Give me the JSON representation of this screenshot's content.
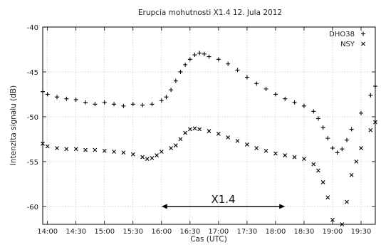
{
  "chart_data": {
    "type": "scatter",
    "title": "Erupcia mohutnosti X1.4 12. Jula 2012",
    "xlabel": "Cas (UTC)",
    "ylabel": "Intenzita signalu (dB)",
    "x_range": [
      "13:55",
      "19:45"
    ],
    "ylim": [
      -62,
      -40
    ],
    "x_ticks": [
      "14:00",
      "14:30",
      "15:00",
      "15:30",
      "16:00",
      "16:30",
      "17:00",
      "17:30",
      "18:00",
      "18:30",
      "19:00",
      "19:30"
    ],
    "y_ticks": [
      -40,
      -45,
      -50,
      -55,
      -60
    ],
    "grid": true,
    "legend_position": "top-right",
    "series": [
      {
        "name": "DHO38",
        "marker": "+",
        "color": "#000000",
        "points": [
          [
            "13:55",
            -47.2
          ],
          [
            "14:00",
            -47.5
          ],
          [
            "14:10",
            -47.8
          ],
          [
            "14:20",
            -48.0
          ],
          [
            "14:30",
            -48.1
          ],
          [
            "14:40",
            -48.4
          ],
          [
            "14:50",
            -48.6
          ],
          [
            "15:00",
            -48.4
          ],
          [
            "15:10",
            -48.6
          ],
          [
            "15:20",
            -48.8
          ],
          [
            "15:30",
            -48.6
          ],
          [
            "15:40",
            -48.7
          ],
          [
            "15:50",
            -48.6
          ],
          [
            "16:00",
            -48.2
          ],
          [
            "16:05",
            -47.8
          ],
          [
            "16:10",
            -47.0
          ],
          [
            "16:15",
            -46.0
          ],
          [
            "16:20",
            -45.0
          ],
          [
            "16:25",
            -44.2
          ],
          [
            "16:30",
            -43.6
          ],
          [
            "16:35",
            -43.1
          ],
          [
            "16:40",
            -42.9
          ],
          [
            "16:45",
            -43.0
          ],
          [
            "16:50",
            -43.3
          ],
          [
            "17:00",
            -43.6
          ],
          [
            "17:10",
            -44.1
          ],
          [
            "17:20",
            -44.8
          ],
          [
            "17:30",
            -45.6
          ],
          [
            "17:40",
            -46.3
          ],
          [
            "17:50",
            -46.9
          ],
          [
            "18:00",
            -47.5
          ],
          [
            "18:10",
            -48.0
          ],
          [
            "18:20",
            -48.4
          ],
          [
            "18:30",
            -48.8
          ],
          [
            "18:40",
            -49.4
          ],
          [
            "18:45",
            -50.2
          ],
          [
            "18:50",
            -51.2
          ],
          [
            "18:55",
            -52.4
          ],
          [
            "19:00",
            -53.5
          ],
          [
            "19:05",
            -54.0
          ],
          [
            "19:10",
            -53.6
          ],
          [
            "19:15",
            -52.6
          ],
          [
            "19:20",
            -51.4
          ],
          [
            "19:30",
            -49.6
          ],
          [
            "19:40",
            -47.6
          ],
          [
            "19:45",
            -46.6
          ]
        ]
      },
      {
        "name": "NSY",
        "marker": "×",
        "color": "#000000",
        "points": [
          [
            "13:55",
            -53.0
          ],
          [
            "14:00",
            -53.3
          ],
          [
            "14:10",
            -53.5
          ],
          [
            "14:20",
            -53.6
          ],
          [
            "14:30",
            -53.6
          ],
          [
            "14:40",
            -53.7
          ],
          [
            "14:50",
            -53.7
          ],
          [
            "15:00",
            -53.8
          ],
          [
            "15:10",
            -53.9
          ],
          [
            "15:20",
            -54.0
          ],
          [
            "15:30",
            -54.2
          ],
          [
            "15:40",
            -54.5
          ],
          [
            "15:45",
            -54.7
          ],
          [
            "15:50",
            -54.6
          ],
          [
            "15:55",
            -54.3
          ],
          [
            "16:00",
            -53.9
          ],
          [
            "16:10",
            -53.5
          ],
          [
            "16:15",
            -53.2
          ],
          [
            "16:20",
            -52.5
          ],
          [
            "16:25",
            -51.8
          ],
          [
            "16:30",
            -51.4
          ],
          [
            "16:35",
            -51.3
          ],
          [
            "16:40",
            -51.4
          ],
          [
            "16:50",
            -51.6
          ],
          [
            "17:00",
            -51.9
          ],
          [
            "17:10",
            -52.3
          ],
          [
            "17:20",
            -52.7
          ],
          [
            "17:30",
            -53.1
          ],
          [
            "17:40",
            -53.5
          ],
          [
            "17:50",
            -53.8
          ],
          [
            "18:00",
            -54.1
          ],
          [
            "18:10",
            -54.3
          ],
          [
            "18:20",
            -54.5
          ],
          [
            "18:30",
            -54.7
          ],
          [
            "18:40",
            -55.3
          ],
          [
            "18:45",
            -56.0
          ],
          [
            "18:50",
            -57.3
          ],
          [
            "18:55",
            -59.0
          ],
          [
            "19:00",
            -61.5
          ],
          [
            "19:10",
            -62.0
          ],
          [
            "19:15",
            -59.5
          ],
          [
            "19:20",
            -56.5
          ],
          [
            "19:25",
            -55.0
          ],
          [
            "19:30",
            -53.5
          ],
          [
            "19:40",
            -51.5
          ],
          [
            "19:45",
            -50.6
          ]
        ]
      }
    ],
    "annotations": [
      {
        "text": "X1.4",
        "x_start": "16:00",
        "x_end": "18:10",
        "y": -60
      }
    ]
  }
}
